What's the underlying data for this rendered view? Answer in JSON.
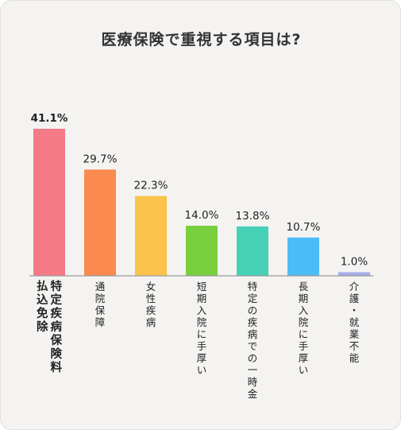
{
  "chart_data": {
    "type": "bar",
    "title": "医療保険で重視する項目は?",
    "unit": "%",
    "ylim": [
      0,
      41.1
    ],
    "grid": false,
    "categories": [
      [
        "特定疾病保険料",
        "払込免除"
      ],
      [
        "通院保障"
      ],
      [
        "女性疾病"
      ],
      [
        "短期入院に手厚い"
      ],
      [
        "特定の疾病での一時金"
      ],
      [
        "長期入院に手厚い"
      ],
      [
        "介護・就業不能"
      ]
    ],
    "values": [
      41.1,
      29.7,
      22.3,
      14.0,
      13.8,
      10.7,
      1.0
    ],
    "value_labels": [
      "41.1%",
      "29.7%",
      "22.3%",
      "14.0%",
      "13.8%",
      "10.7%",
      "1.0%"
    ],
    "colors": [
      "#f47a86",
      "#fb8a50",
      "#fbc24c",
      "#7acf3e",
      "#46d1b6",
      "#4cbcf6",
      "#a3acea"
    ]
  }
}
